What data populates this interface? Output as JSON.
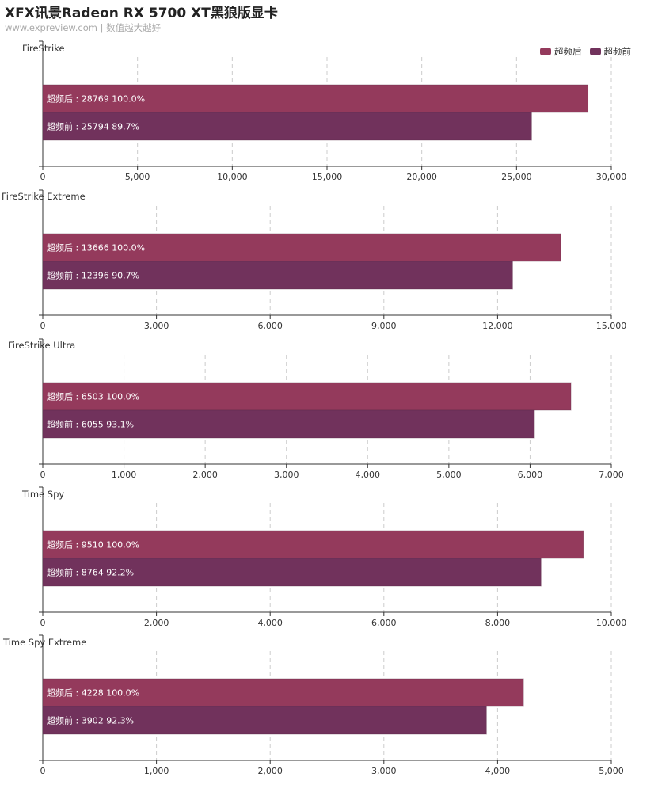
{
  "header": {
    "title": "XFX讯景Radeon RX 5700 XT黑狼版显卡",
    "subtitle": "www.expreview.com | 数值越大越好"
  },
  "legend": {
    "items": [
      {
        "label": "超频后",
        "color": "#943a5c"
      },
      {
        "label": "超频前",
        "color": "#71325c"
      }
    ]
  },
  "chart_data": [
    {
      "type": "bar",
      "orientation": "horizontal",
      "title": "FireStrike",
      "xlim": [
        0,
        30000
      ],
      "xticks": [
        0,
        5000,
        10000,
        15000,
        20000,
        25000,
        30000
      ],
      "xtick_labels": [
        "0",
        "5,000",
        "10,000",
        "15,000",
        "20,000",
        "25,000",
        "30,000"
      ],
      "grid": true,
      "series": [
        {
          "name": "超频后",
          "value": 28769,
          "percent": "100.0%",
          "label": "超频后 : 28769  100.0%"
        },
        {
          "name": "超频前",
          "value": 25794,
          "percent": "89.7%",
          "label": "超频前 : 25794  89.7%"
        }
      ]
    },
    {
      "type": "bar",
      "orientation": "horizontal",
      "title": "FireStrike Extreme",
      "xlim": [
        0,
        15000
      ],
      "xticks": [
        0,
        3000,
        6000,
        9000,
        12000,
        15000
      ],
      "xtick_labels": [
        "0",
        "3,000",
        "6,000",
        "9,000",
        "12,000",
        "15,000"
      ],
      "grid": true,
      "series": [
        {
          "name": "超频后",
          "value": 13666,
          "percent": "100.0%",
          "label": "超频后 : 13666  100.0%"
        },
        {
          "name": "超频前",
          "value": 12396,
          "percent": "90.7%",
          "label": "超频前 : 12396  90.7%"
        }
      ]
    },
    {
      "type": "bar",
      "orientation": "horizontal",
      "title": "FireStrike Ultra",
      "xlim": [
        0,
        7000
      ],
      "xticks": [
        0,
        1000,
        2000,
        3000,
        4000,
        5000,
        6000,
        7000
      ],
      "xtick_labels": [
        "0",
        "1,000",
        "2,000",
        "3,000",
        "4,000",
        "5,000",
        "6,000",
        "7,000"
      ],
      "grid": true,
      "series": [
        {
          "name": "超频后",
          "value": 6503,
          "percent": "100.0%",
          "label": "超频后 : 6503  100.0%"
        },
        {
          "name": "超频前",
          "value": 6055,
          "percent": "93.1%",
          "label": "超频前 : 6055  93.1%"
        }
      ]
    },
    {
      "type": "bar",
      "orientation": "horizontal",
      "title": "Time Spy",
      "xlim": [
        0,
        10000
      ],
      "xticks": [
        0,
        2000,
        4000,
        6000,
        8000,
        10000
      ],
      "xtick_labels": [
        "0",
        "2,000",
        "4,000",
        "6,000",
        "8,000",
        "10,000"
      ],
      "grid": true,
      "series": [
        {
          "name": "超频后",
          "value": 9510,
          "percent": "100.0%",
          "label": "超频后 : 9510  100.0%"
        },
        {
          "name": "超频前",
          "value": 8764,
          "percent": "92.2%",
          "label": "超频前 : 8764  92.2%"
        }
      ]
    },
    {
      "type": "bar",
      "orientation": "horizontal",
      "title": "Time Spy Extreme",
      "xlim": [
        0,
        5000
      ],
      "xticks": [
        0,
        1000,
        2000,
        3000,
        4000,
        5000
      ],
      "xtick_labels": [
        "0",
        "1,000",
        "2,000",
        "3,000",
        "4,000",
        "5,000"
      ],
      "grid": true,
      "series": [
        {
          "name": "超频后",
          "value": 4228,
          "percent": "100.0%",
          "label": "超频后 : 4228  100.0%"
        },
        {
          "name": "超频前",
          "value": 3902,
          "percent": "92.3%",
          "label": "超频前 : 3902  92.3%"
        }
      ]
    }
  ]
}
